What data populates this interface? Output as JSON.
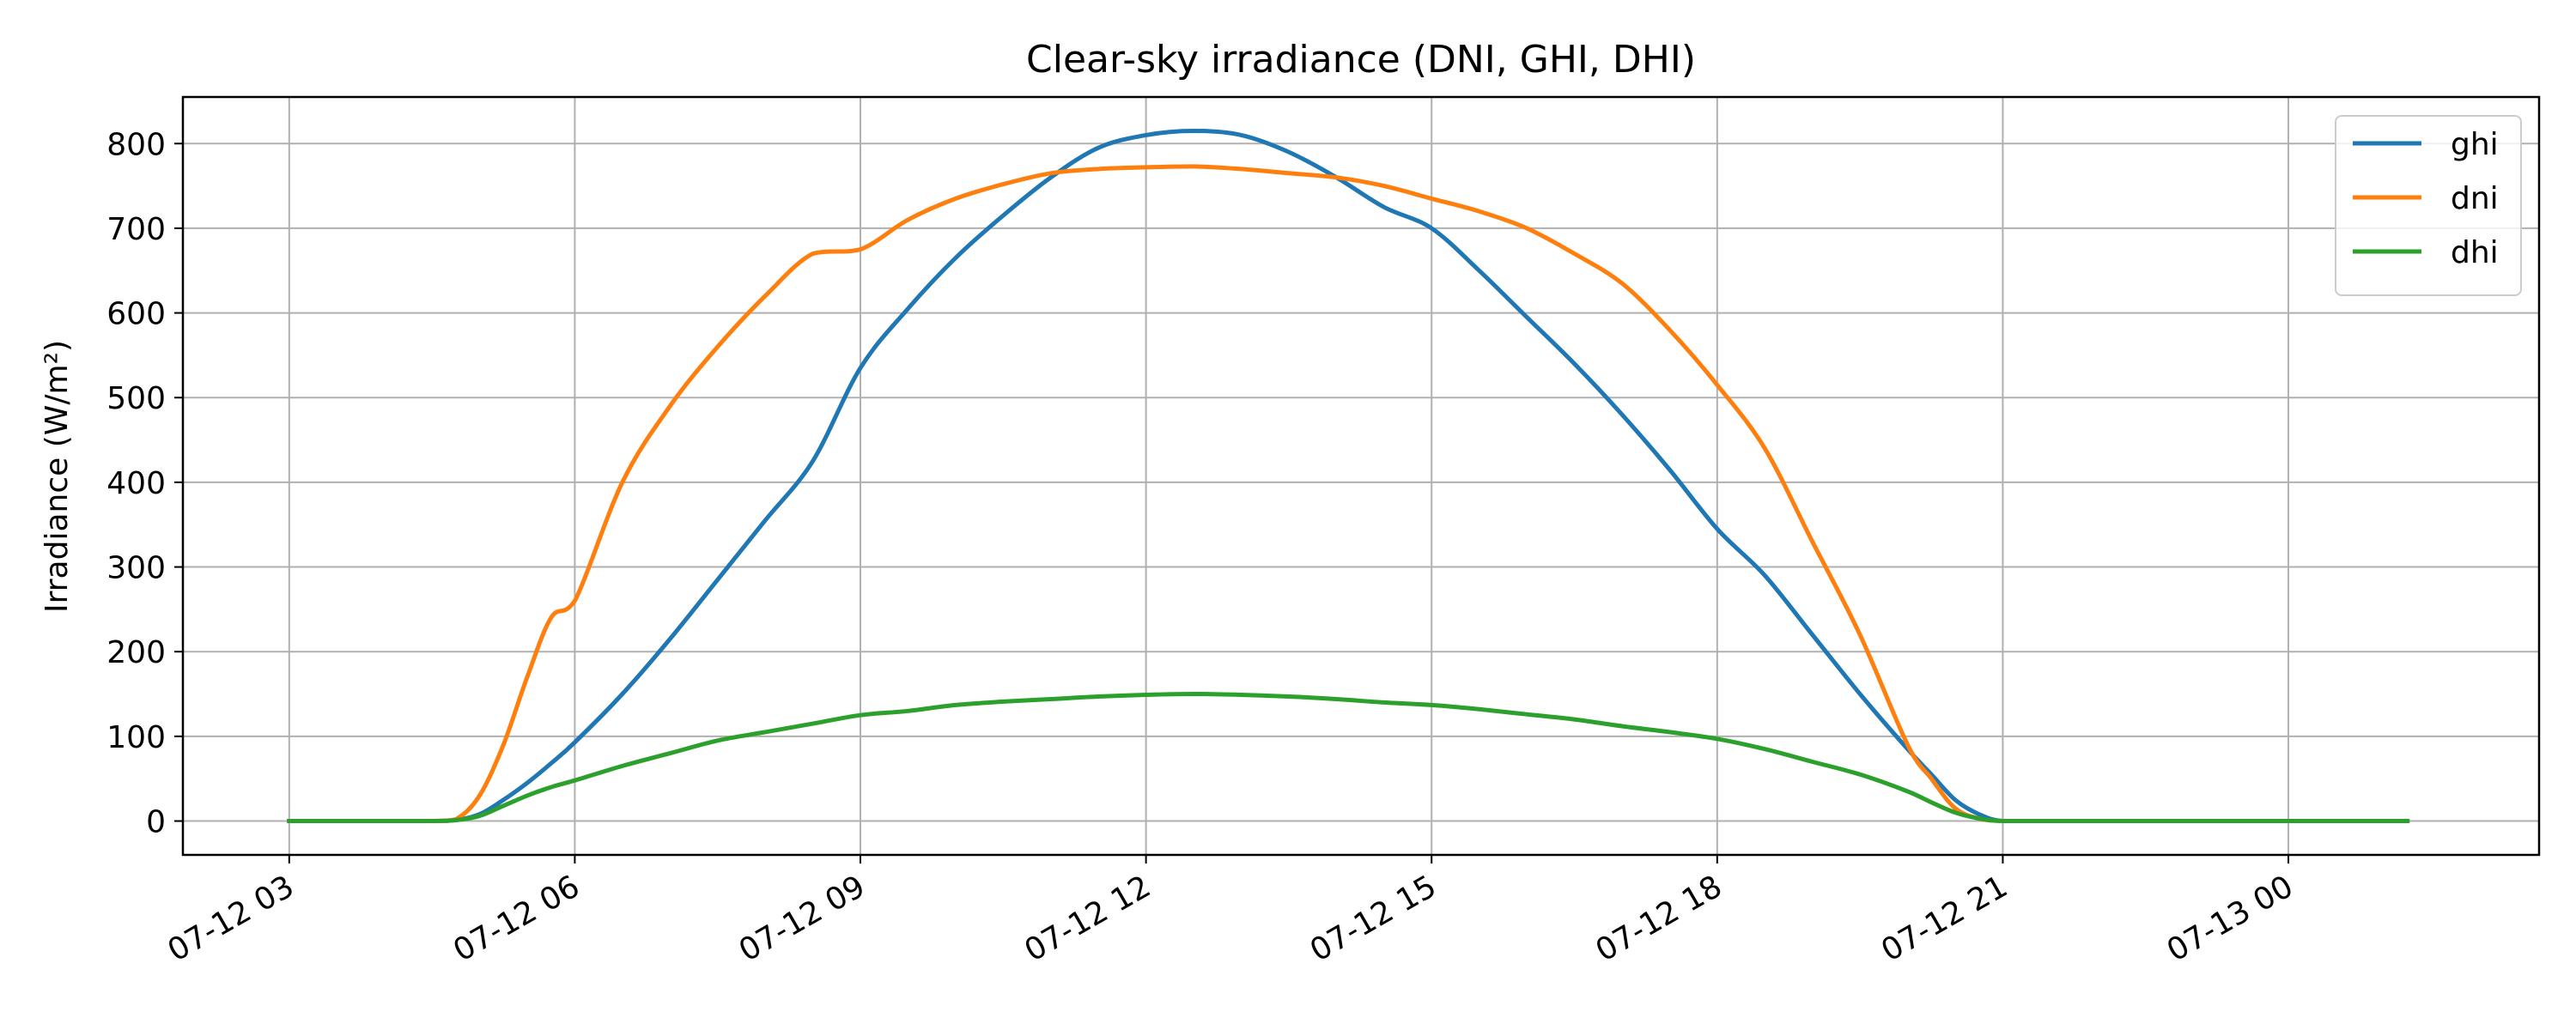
{
  "chart_data": {
    "type": "line",
    "title": "Clear-sky irradiance (DNI, GHI, DHI)",
    "xlabel": "",
    "ylabel": "Irradiance (W/m²)",
    "x_type": "datetime",
    "xlim": [
      "2024-07-12T01:53",
      "2024-07-13T02:38"
    ],
    "ylim": [
      -40,
      855
    ],
    "x_ticks": [
      {
        "value": "2024-07-12T03:00",
        "label": "07-12 03"
      },
      {
        "value": "2024-07-12T06:00",
        "label": "07-12 06"
      },
      {
        "value": "2024-07-12T09:00",
        "label": "07-12 09"
      },
      {
        "value": "2024-07-12T12:00",
        "label": "07-12 12"
      },
      {
        "value": "2024-07-12T15:00",
        "label": "07-12 15"
      },
      {
        "value": "2024-07-12T18:00",
        "label": "07-12 18"
      },
      {
        "value": "2024-07-12T21:00",
        "label": "07-12 21"
      },
      {
        "value": "2024-07-13T00:00",
        "label": "07-13 00"
      }
    ],
    "y_ticks": [
      0,
      100,
      200,
      300,
      400,
      500,
      600,
      700,
      800
    ],
    "grid": true,
    "legend_position": "top-right",
    "x": [
      "2024-07-12T03:00",
      "2024-07-12T03:30",
      "2024-07-12T04:00",
      "2024-07-12T04:30",
      "2024-07-12T04:45",
      "2024-07-12T05:00",
      "2024-07-12T05:15",
      "2024-07-12T05:30",
      "2024-07-12T05:45",
      "2024-07-12T06:00",
      "2024-07-12T06:30",
      "2024-07-12T07:00",
      "2024-07-12T07:30",
      "2024-07-12T08:00",
      "2024-07-12T08:30",
      "2024-07-12T09:00",
      "2024-07-12T09:30",
      "2024-07-12T10:00",
      "2024-07-12T10:30",
      "2024-07-12T11:00",
      "2024-07-12T11:30",
      "2024-07-12T12:00",
      "2024-07-12T12:30",
      "2024-07-12T13:00",
      "2024-07-12T13:30",
      "2024-07-12T14:00",
      "2024-07-12T14:30",
      "2024-07-12T15:00",
      "2024-07-12T15:30",
      "2024-07-12T16:00",
      "2024-07-12T16:30",
      "2024-07-12T17:00",
      "2024-07-12T17:30",
      "2024-07-12T18:00",
      "2024-07-12T18:30",
      "2024-07-12T19:00",
      "2024-07-12T19:30",
      "2024-07-12T20:00",
      "2024-07-12T20:15",
      "2024-07-12T20:30",
      "2024-07-12T20:45",
      "2024-07-12T21:00",
      "2024-07-12T21:30",
      "2024-07-12T22:00",
      "2024-07-12T23:00",
      "2024-07-13T00:00",
      "2024-07-13T01:00",
      "2024-07-13T01:15"
    ],
    "series": [
      {
        "name": "ghi",
        "color": "#1f77b4",
        "values": [
          0,
          0,
          0,
          0,
          1,
          8,
          25,
          45,
          68,
          93,
          150,
          215,
          285,
          355,
          425,
          535,
          605,
          665,
          715,
          760,
          795,
          810,
          815,
          810,
          790,
          760,
          725,
          700,
          650,
          595,
          540,
          480,
          415,
          345,
          290,
          220,
          150,
          85,
          55,
          25,
          8,
          0,
          0,
          0,
          0,
          0,
          0,
          0
        ]
      },
      {
        "name": "dni",
        "color": "#ff7f0e",
        "values": [
          0,
          0,
          0,
          0,
          2,
          30,
          90,
          170,
          240,
          260,
          400,
          490,
          560,
          620,
          670,
          675,
          710,
          735,
          752,
          765,
          770,
          772,
          773,
          770,
          765,
          760,
          750,
          735,
          720,
          700,
          670,
          635,
          580,
          515,
          440,
          330,
          220,
          90,
          50,
          15,
          3,
          0,
          0,
          0,
          0,
          0,
          0,
          0
        ]
      },
      {
        "name": "dhi",
        "color": "#2ca02c",
        "values": [
          0,
          0,
          0,
          0,
          1,
          6,
          18,
          30,
          40,
          48,
          65,
          80,
          95,
          105,
          115,
          125,
          130,
          137,
          141,
          144,
          147,
          149,
          150,
          149,
          147,
          144,
          140,
          137,
          132,
          126,
          120,
          112,
          105,
          97,
          85,
          70,
          55,
          35,
          22,
          10,
          3,
          0,
          0,
          0,
          0,
          0,
          0,
          0
        ]
      }
    ]
  }
}
